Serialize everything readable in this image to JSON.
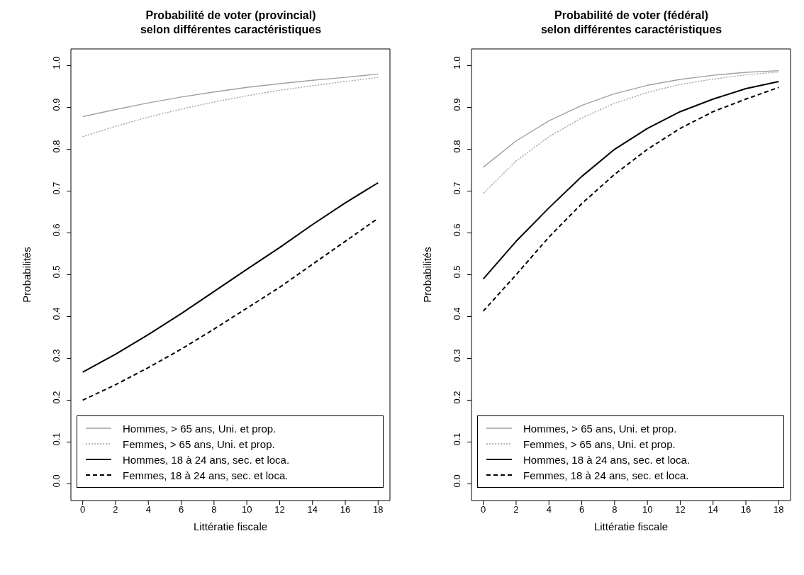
{
  "chart_data": [
    {
      "type": "line",
      "title": "Probabilité de voter (provincial)\nselon différentes caractéristiques",
      "xlabel": "Littératie fiscale",
      "ylabel": "Probabilités",
      "x": [
        0,
        2,
        4,
        6,
        8,
        10,
        12,
        14,
        16,
        18
      ],
      "xlim": [
        -0.72,
        18.72
      ],
      "xticks": [
        0,
        2,
        4,
        6,
        8,
        10,
        12,
        14,
        16,
        18
      ],
      "ylim": [
        -0.04,
        1.04
      ],
      "yticks": [
        {
          "value": 0,
          "label": "0.0"
        },
        {
          "value": 0.1,
          "label": "0.1"
        },
        {
          "value": 0.2,
          "label": "0.2"
        },
        {
          "value": 0.3,
          "label": "0.3"
        },
        {
          "value": 0.4,
          "label": "0.4"
        },
        {
          "value": 0.5,
          "label": "0.5"
        },
        {
          "value": 0.6,
          "label": "0.6"
        },
        {
          "value": 0.7,
          "label": "0.7"
        },
        {
          "value": 0.8,
          "label": "0.8"
        },
        {
          "value": 0.9,
          "label": "0.9"
        },
        {
          "value": 1,
          "label": "1.0"
        }
      ],
      "legend": "bottom",
      "series": [
        {
          "name": "Hommes, > 65 ans, Uni. et prop.",
          "color": "#a0a0a0",
          "line_style": "solid",
          "values": [
            0.878,
            0.895,
            0.911,
            0.925,
            0.937,
            0.948,
            0.957,
            0.965,
            0.972,
            0.98
          ]
        },
        {
          "name": "Femmes, > 65 ans, Uni. et prop.",
          "color": "#a0a0a0",
          "line_style": "dotted",
          "values": [
            0.83,
            0.855,
            0.877,
            0.896,
            0.913,
            0.928,
            0.941,
            0.952,
            0.962,
            0.972
          ]
        },
        {
          "name": "Hommes, 18 à 24 ans, sec. et loca.",
          "color": "#000000",
          "line_style": "solid",
          "values": [
            0.267,
            0.31,
            0.357,
            0.407,
            0.46,
            0.513,
            0.565,
            0.62,
            0.672,
            0.72
          ]
        },
        {
          "name": "Femmes, 18 à 24 ans, sec. et loca.",
          "color": "#000000",
          "line_style": "dashed",
          "values": [
            0.2,
            0.237,
            0.278,
            0.322,
            0.37,
            0.42,
            0.47,
            0.525,
            0.58,
            0.635
          ]
        }
      ]
    },
    {
      "type": "line",
      "title": "Probabilité de voter (fédéral)\nselon différentes caractéristiques",
      "xlabel": "Littératie fiscale",
      "ylabel": "Probabilités",
      "x": [
        0,
        2,
        4,
        6,
        8,
        10,
        12,
        14,
        16,
        18
      ],
      "xlim": [
        -0.72,
        18.72
      ],
      "xticks": [
        0,
        2,
        4,
        6,
        8,
        10,
        12,
        14,
        16,
        18
      ],
      "ylim": [
        -0.04,
        1.04
      ],
      "yticks": [
        {
          "value": 0,
          "label": "0.0"
        },
        {
          "value": 0.1,
          "label": "0.1"
        },
        {
          "value": 0.2,
          "label": "0.2"
        },
        {
          "value": 0.3,
          "label": "0.3"
        },
        {
          "value": 0.4,
          "label": "0.4"
        },
        {
          "value": 0.5,
          "label": "0.5"
        },
        {
          "value": 0.6,
          "label": "0.6"
        },
        {
          "value": 0.7,
          "label": "0.7"
        },
        {
          "value": 0.8,
          "label": "0.8"
        },
        {
          "value": 0.9,
          "label": "0.9"
        },
        {
          "value": 1,
          "label": "1.0"
        }
      ],
      "legend": "bottom",
      "series": [
        {
          "name": "Hommes, > 65 ans, Uni. et prop.",
          "color": "#a0a0a0",
          "line_style": "solid",
          "values": [
            0.757,
            0.82,
            0.868,
            0.905,
            0.933,
            0.953,
            0.967,
            0.977,
            0.984,
            0.988
          ]
        },
        {
          "name": "Femmes, > 65 ans, Uni. et prop.",
          "color": "#a0a0a0",
          "line_style": "dotted",
          "values": [
            0.695,
            0.772,
            0.83,
            0.875,
            0.91,
            0.936,
            0.955,
            0.968,
            0.978,
            0.985
          ]
        },
        {
          "name": "Hommes, 18 à 24 ans, sec. et loca.",
          "color": "#000000",
          "line_style": "solid",
          "values": [
            0.49,
            0.58,
            0.66,
            0.735,
            0.8,
            0.85,
            0.89,
            0.92,
            0.945,
            0.962
          ]
        },
        {
          "name": "Femmes, 18 à 24 ans, sec. et loca.",
          "color": "#000000",
          "line_style": "dashed",
          "values": [
            0.413,
            0.5,
            0.59,
            0.67,
            0.74,
            0.8,
            0.85,
            0.89,
            0.92,
            0.948
          ]
        }
      ]
    }
  ]
}
